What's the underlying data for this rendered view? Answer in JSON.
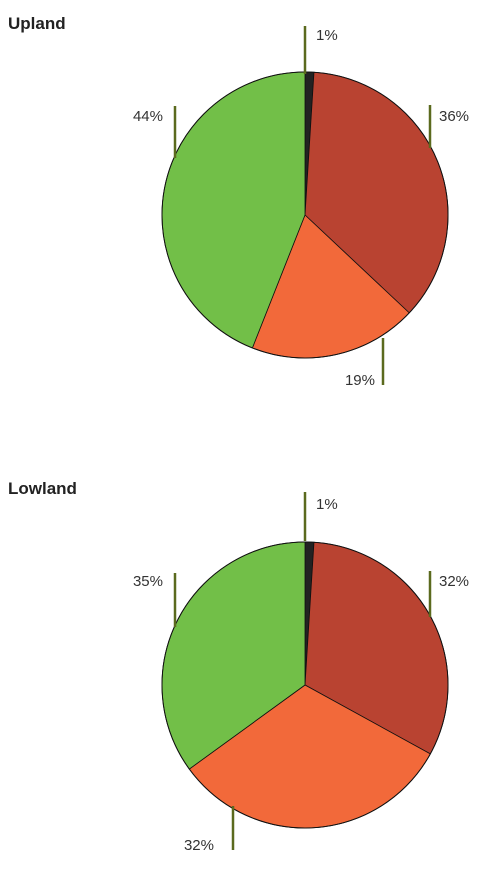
{
  "chart_data": [
    {
      "type": "pie",
      "title": "Upland",
      "start": "top",
      "direction": "clockwise",
      "slices": [
        {
          "label": "1%",
          "value": 1,
          "color": "#222222"
        },
        {
          "label": "36%",
          "value": 36,
          "color": "#b94331"
        },
        {
          "label": "19%",
          "value": 19,
          "color": "#f2693a"
        },
        {
          "label": "44%",
          "value": 44,
          "color": "#72bf48"
        }
      ],
      "leader_color": "#5b6a1e"
    },
    {
      "type": "pie",
      "title": "Lowland",
      "start": "top",
      "direction": "clockwise",
      "slices": [
        {
          "label": "1%",
          "value": 1,
          "color": "#222222"
        },
        {
          "label": "32%",
          "value": 32,
          "color": "#b94331"
        },
        {
          "label": "32%",
          "value": 32,
          "color": "#f2693a"
        },
        {
          "label": "35%",
          "value": 35,
          "color": "#72bf48"
        }
      ],
      "leader_color": "#5b6a1e"
    }
  ]
}
